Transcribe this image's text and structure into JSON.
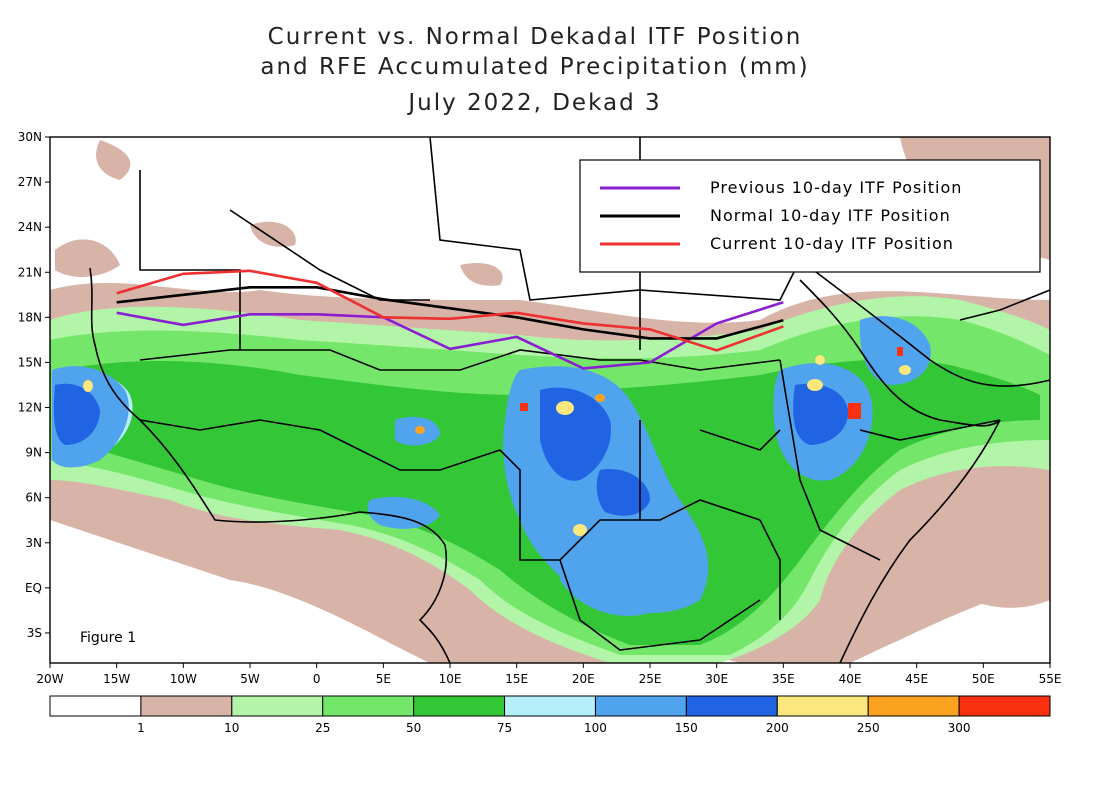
{
  "title": {
    "line1": "Current vs. Normal Dekadal ITF Position",
    "line2": "and RFE Accumulated Precipitation (mm)",
    "line3": "July 2022, Dekad 3"
  },
  "figure_label": "Figure 1",
  "map_extent": {
    "lon_min": -20,
    "lon_max": 55,
    "lat_min": -5,
    "lat_max": 30
  },
  "lat_ticks": [
    {
      "value": 30,
      "label": "30N"
    },
    {
      "value": 27,
      "label": "27N"
    },
    {
      "value": 24,
      "label": "24N"
    },
    {
      "value": 21,
      "label": "21N"
    },
    {
      "value": 18,
      "label": "18N"
    },
    {
      "value": 15,
      "label": "15N"
    },
    {
      "value": 12,
      "label": "12N"
    },
    {
      "value": 9,
      "label": "9N"
    },
    {
      "value": 6,
      "label": "6N"
    },
    {
      "value": 3,
      "label": "3N"
    },
    {
      "value": 0,
      "label": "EQ"
    },
    {
      "value": -3,
      "label": "3S"
    }
  ],
  "lon_ticks": [
    {
      "value": -20,
      "label": "20W"
    },
    {
      "value": -15,
      "label": "15W"
    },
    {
      "value": -10,
      "label": "10W"
    },
    {
      "value": -5,
      "label": "5W"
    },
    {
      "value": 0,
      "label": "0"
    },
    {
      "value": 5,
      "label": "5E"
    },
    {
      "value": 10,
      "label": "10E"
    },
    {
      "value": 15,
      "label": "15E"
    },
    {
      "value": 20,
      "label": "20E"
    },
    {
      "value": 25,
      "label": "25E"
    },
    {
      "value": 30,
      "label": "30E"
    },
    {
      "value": 35,
      "label": "35E"
    },
    {
      "value": 40,
      "label": "40E"
    },
    {
      "value": 45,
      "label": "45E"
    },
    {
      "value": 50,
      "label": "50E"
    },
    {
      "value": 55,
      "label": "55E"
    }
  ],
  "legend": [
    {
      "name": "previous",
      "label": "Previous 10-day ITF Position",
      "color": "#8a1fd1"
    },
    {
      "name": "normal",
      "label": "Normal 10-day ITF Position",
      "color": "#000000"
    },
    {
      "name": "current",
      "label": "Current 10-day ITF Position",
      "color": "#ee3030"
    }
  ],
  "itf_lines": {
    "previous": [
      [
        -15,
        18.3
      ],
      [
        -10,
        17.5
      ],
      [
        -5,
        18.2
      ],
      [
        0,
        18.2
      ],
      [
        5,
        18.0
      ],
      [
        10,
        15.9
      ],
      [
        15,
        16.7
      ],
      [
        20,
        14.6
      ],
      [
        25,
        15.0
      ],
      [
        30,
        17.6
      ],
      [
        35,
        19.0
      ]
    ],
    "normal": [
      [
        -15,
        19.0
      ],
      [
        -10,
        19.5
      ],
      [
        -5,
        20.0
      ],
      [
        0,
        20.0
      ],
      [
        5,
        19.2
      ],
      [
        10,
        18.6
      ],
      [
        15,
        18.0
      ],
      [
        20,
        17.2
      ],
      [
        25,
        16.6
      ],
      [
        30,
        16.6
      ],
      [
        35,
        17.8
      ]
    ],
    "current": [
      [
        -15,
        19.6
      ],
      [
        -10,
        20.9
      ],
      [
        -5,
        21.1
      ],
      [
        0,
        20.3
      ],
      [
        5,
        18.0
      ],
      [
        10,
        17.9
      ],
      [
        15,
        18.3
      ],
      [
        20,
        17.6
      ],
      [
        25,
        17.2
      ],
      [
        30,
        15.8
      ],
      [
        35,
        17.4
      ]
    ]
  },
  "colorbar": {
    "colors": [
      "#ffffff",
      "#d8b4a8",
      "#b3f5a8",
      "#74e76a",
      "#33c636",
      "#b4effa",
      "#50a4ee",
      "#2063e3",
      "#fbe77e",
      "#fba21e",
      "#fb3010"
    ],
    "labels": [
      "1",
      "10",
      "25",
      "50",
      "75",
      "100",
      "150",
      "200",
      "250",
      "300"
    ]
  },
  "colors": {
    "bg": "#ffffff",
    "border": "#000000",
    "rain_light": "#d8b4a8",
    "rain_25": "#b3f5a8",
    "rain_50": "#74e76a",
    "rain_75": "#33c636",
    "rain_100": "#b4effa",
    "rain_150": "#50a4ee",
    "rain_200": "#2063e3",
    "rain_250": "#fbe77e",
    "rain_300": "#fba21e",
    "rain_max": "#fb3010"
  }
}
